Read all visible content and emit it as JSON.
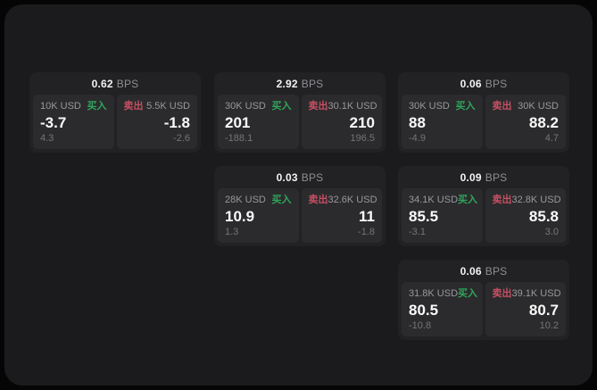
{
  "labels": {
    "bps_unit": "BPS",
    "buy": "买入",
    "sell": "卖出"
  },
  "colors": {
    "page_bg": "#050505",
    "window_bg": "#1b1b1d",
    "card_bg": "#222224",
    "panel_bg": "#2b2b2d",
    "buy_green": "#30a55c",
    "sell_red": "#c64f62",
    "value_white": "#fafafa",
    "label_gray": "#98989d",
    "delta_gray": "#757579"
  },
  "cards": [
    {
      "bps": "0.62",
      "buy": {
        "size": "10K USD",
        "value": "-3.7",
        "delta": "4.3"
      },
      "sell": {
        "size": "5.5K USD",
        "value": "-1.8",
        "delta": "-2.6"
      }
    },
    {
      "bps": "2.92",
      "buy": {
        "size": "30K USD",
        "value": "201",
        "delta": "-188.1"
      },
      "sell": {
        "size": "30.1K USD",
        "value": "210",
        "delta": "196.5"
      }
    },
    {
      "bps": "0.06",
      "buy": {
        "size": "30K USD",
        "value": "88",
        "delta": "-4.9"
      },
      "sell": {
        "size": "30K USD",
        "value": "88.2",
        "delta": "4.7"
      }
    },
    {
      "bps": "0.03",
      "buy": {
        "size": "28K USD",
        "value": "10.9",
        "delta": "1.3"
      },
      "sell": {
        "size": "32.6K USD",
        "value": "11",
        "delta": "-1.8"
      }
    },
    {
      "bps": "0.09",
      "buy": {
        "size": "34.1K USD",
        "value": "85.5",
        "delta": "-3.1"
      },
      "sell": {
        "size": "32.8K USD",
        "value": "85.8",
        "delta": "3.0"
      }
    },
    {
      "bps": "0.06",
      "buy": {
        "size": "31.8K USD",
        "value": "80.5",
        "delta": "-10.8"
      },
      "sell": {
        "size": "39.1K USD",
        "value": "80.7",
        "delta": "10.2"
      }
    }
  ]
}
